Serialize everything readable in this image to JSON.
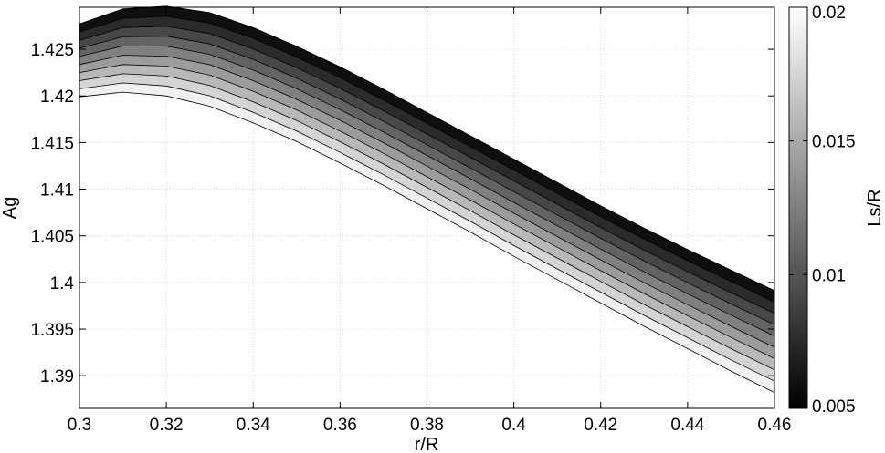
{
  "chart_data": {
    "type": "area",
    "xlabel": "r/R",
    "ylabel": "Ag",
    "colorbar_label": "Ls/R",
    "xlim": [
      0.3,
      0.46
    ],
    "ylim": [
      1.3865,
      1.4295
    ],
    "x_ticks": [
      "0.3",
      "0.32",
      "0.34",
      "0.36",
      "0.38",
      "0.4",
      "0.42",
      "0.44",
      "0.46"
    ],
    "y_ticks": [
      "1.39",
      "1.395",
      "1.4",
      "1.405",
      "1.41",
      "1.415",
      "1.42",
      "1.425"
    ],
    "colorbar_ticks": [
      "0.005",
      "0.01",
      "0.015",
      "0.02"
    ],
    "colorbar_range": [
      0.005,
      0.02
    ],
    "colormap": "gray",
    "grid": true,
    "x": [
      0.3,
      0.31,
      0.32,
      0.33,
      0.34,
      0.35,
      0.36,
      0.37,
      0.38,
      0.39,
      0.4,
      0.41,
      0.42,
      0.43,
      0.44,
      0.45,
      0.46
    ],
    "series": [
      {
        "ls": 0.005,
        "values": [
          1.4277,
          1.4293,
          1.4296,
          1.4289,
          1.4273,
          1.4253,
          1.4231,
          1.4207,
          1.4182,
          1.4157,
          1.4132,
          1.4107,
          1.4082,
          1.4058,
          1.4035,
          1.4013,
          1.3991
        ]
      },
      {
        "ls": 0.02,
        "values": [
          1.4199,
          1.4204,
          1.42,
          1.4189,
          1.4171,
          1.4151,
          1.4128,
          1.4104,
          1.4079,
          1.4054,
          1.4028,
          1.4003,
          1.3978,
          1.3953,
          1.3929,
          1.3905,
          1.3882
        ]
      }
    ]
  }
}
